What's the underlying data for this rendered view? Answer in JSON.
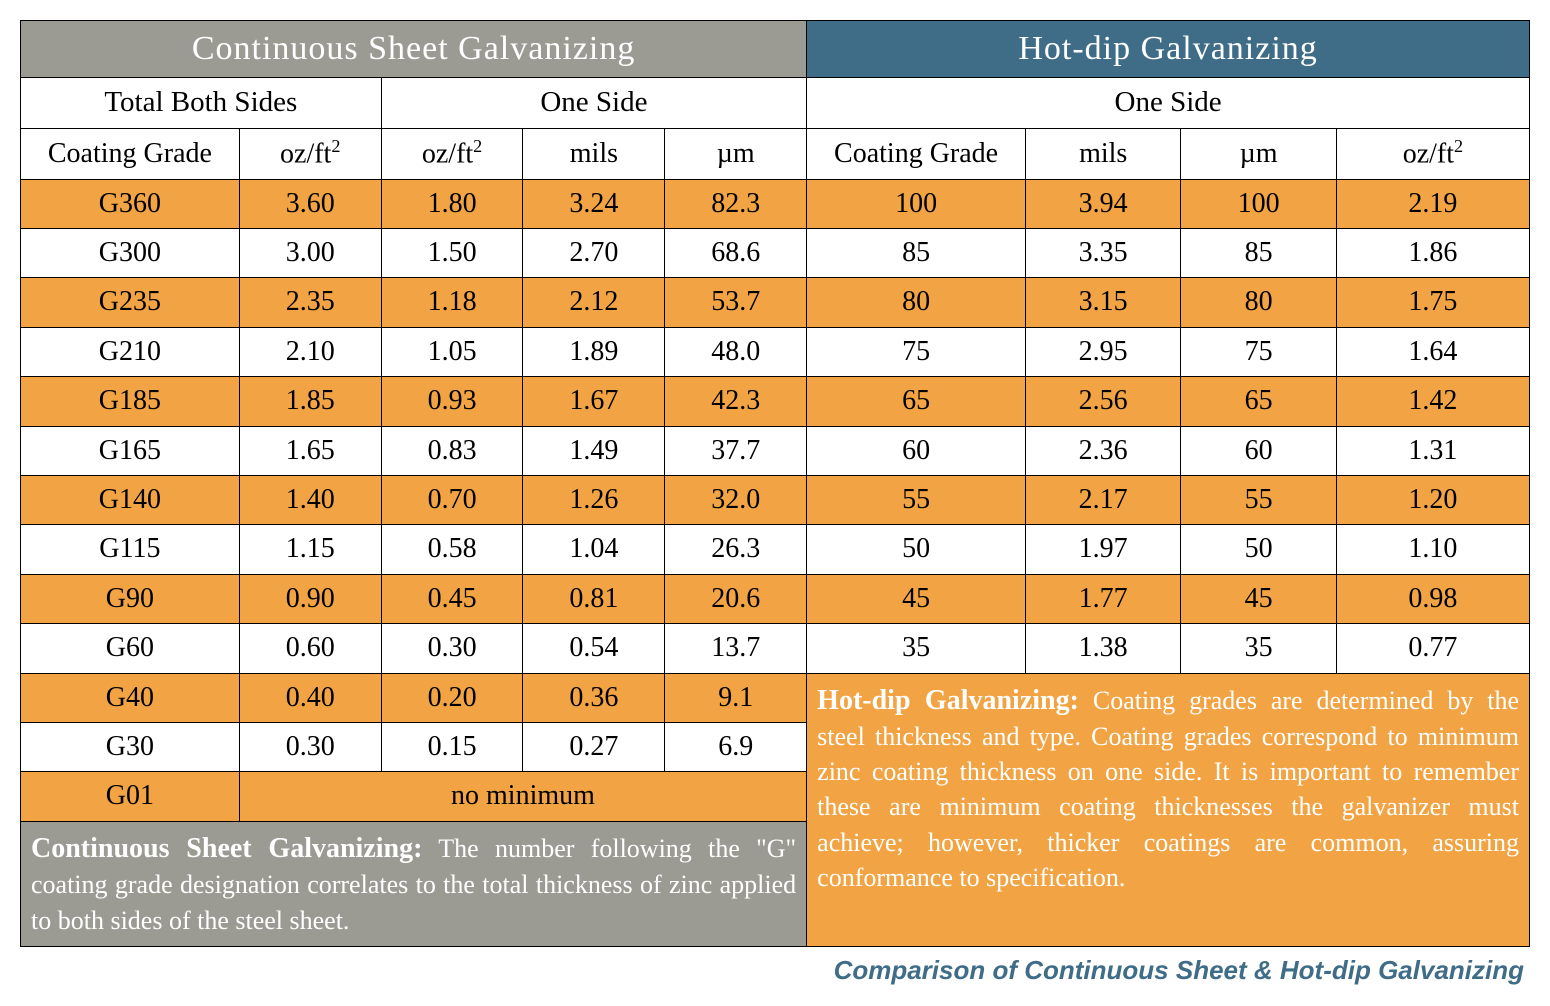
{
  "colors": {
    "header_gray_bg": "#9b9b93",
    "header_blue_bg": "#3f6c87",
    "row_highlight_bg": "#f2a444",
    "row_plain_bg": "#ffffff",
    "border_color": "#000000",
    "header_text": "#ffffff",
    "caption_color": "#3f6c87"
  },
  "typography": {
    "body_font": "Georgia, Times New Roman, serif",
    "caption_font": "Arial, Helvetica, sans-serif",
    "header_fontsize_pt": 25,
    "cell_fontsize_pt": 21,
    "note_fontsize_pt": 19,
    "caption_fontsize_pt": 19
  },
  "layout": {
    "total_columns": 9,
    "col_widths_pct": [
      14.5,
      9.4,
      9.4,
      9.4,
      9.4,
      14.5,
      10.3,
      10.3,
      12.8
    ]
  },
  "headers": {
    "left_main": "Continuous Sheet Galvanizing",
    "right_main": "Hot-dip Galvanizing",
    "left_sub1": "Total Both Sides",
    "left_sub2": "One Side",
    "right_sub": "One Side"
  },
  "columns": {
    "c1": "Coating Grade",
    "c2": "oz/ft",
    "c2_sup": "2",
    "c3": "oz/ft",
    "c3_sup": "2",
    "c4": "mils",
    "c5": "µm",
    "c6": "Coating Grade",
    "c7": "mils",
    "c8": "µm",
    "c9": "oz/ft",
    "c9_sup": "2"
  },
  "rows": [
    {
      "highlight": true,
      "l": [
        "G360",
        "3.60",
        "1.80",
        "3.24",
        "82.3"
      ],
      "r": [
        "100",
        "3.94",
        "100",
        "2.19"
      ]
    },
    {
      "highlight": false,
      "l": [
        "G300",
        "3.00",
        "1.50",
        "2.70",
        "68.6"
      ],
      "r": [
        "85",
        "3.35",
        "85",
        "1.86"
      ]
    },
    {
      "highlight": true,
      "l": [
        "G235",
        "2.35",
        "1.18",
        "2.12",
        "53.7"
      ],
      "r": [
        "80",
        "3.15",
        "80",
        "1.75"
      ]
    },
    {
      "highlight": false,
      "l": [
        "G210",
        "2.10",
        "1.05",
        "1.89",
        "48.0"
      ],
      "r": [
        "75",
        "2.95",
        "75",
        "1.64"
      ]
    },
    {
      "highlight": true,
      "l": [
        "G185",
        "1.85",
        "0.93",
        "1.67",
        "42.3"
      ],
      "r": [
        "65",
        "2.56",
        "65",
        "1.42"
      ]
    },
    {
      "highlight": false,
      "l": [
        "G165",
        "1.65",
        "0.83",
        "1.49",
        "37.7"
      ],
      "r": [
        "60",
        "2.36",
        "60",
        "1.31"
      ]
    },
    {
      "highlight": true,
      "l": [
        "G140",
        "1.40",
        "0.70",
        "1.26",
        "32.0"
      ],
      "r": [
        "55",
        "2.17",
        "55",
        "1.20"
      ]
    },
    {
      "highlight": false,
      "l": [
        "G115",
        "1.15",
        "0.58",
        "1.04",
        "26.3"
      ],
      "r": [
        "50",
        "1.97",
        "50",
        "1.10"
      ]
    },
    {
      "highlight": true,
      "l": [
        "G90",
        "0.90",
        "0.45",
        "0.81",
        "20.6"
      ],
      "r": [
        "45",
        "1.77",
        "45",
        "0.98"
      ]
    },
    {
      "highlight": false,
      "l": [
        "G60",
        "0.60",
        "0.30",
        "0.54",
        "13.7"
      ],
      "r": [
        "35",
        "1.38",
        "35",
        "0.77"
      ]
    }
  ],
  "tail": {
    "r11": {
      "highlight": true,
      "l": [
        "G40",
        "0.40",
        "0.20",
        "0.36",
        "9.1"
      ]
    },
    "r12": {
      "highlight": false,
      "l": [
        "G30",
        "0.30",
        "0.15",
        "0.27",
        "6.9"
      ]
    },
    "r13": {
      "highlight": true,
      "grade": "G01",
      "merged": "no minimum"
    }
  },
  "notes": {
    "left_title": "Continuous Sheet Galvanizing:",
    "left_body": " The number following the \"G\" coating grade designation correlates to the total thickness of zinc applied to both sides of the steel sheet.",
    "right_title": "Hot-dip Galvanizing:",
    "right_body": " Coating grades are determined by the steel thickness and type.  Coating grades correspond to minimum zinc coating thickness on one side.  It is important to remember these are minimum coating thicknesses the galvanizer must achieve; however, thicker coatings are common, assuring conformance to specification."
  },
  "caption": "Comparison of Continuous Sheet & Hot-dip Galvanizing"
}
